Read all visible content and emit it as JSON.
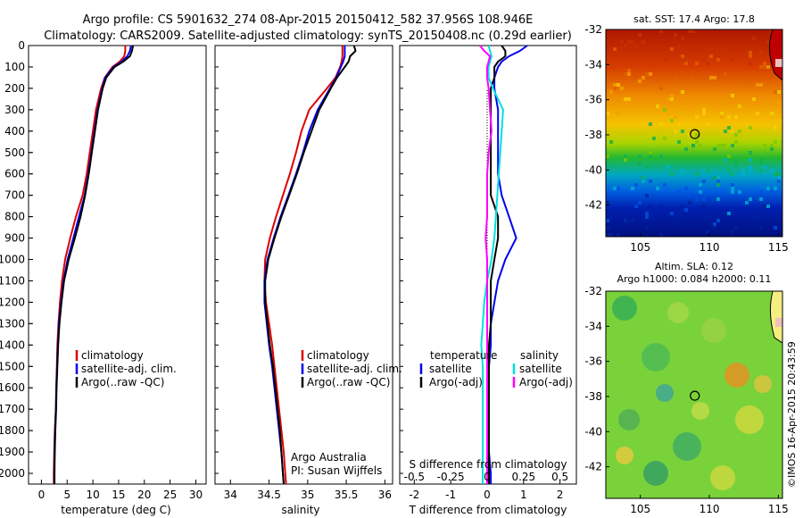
{
  "header": {
    "line1": "Argo profile: CS 5901632_274 08-Apr-2015 20150412_582 37.956S 108.946E",
    "line2": "Climatology: CARS2009. Satellite-adjusted climatology: synTS_20150408.nc (0.29d earlier)"
  },
  "chart_data": [
    {
      "type": "line",
      "name": "temperature panel",
      "xlabel": "temperature (deg C)",
      "ylabel": "",
      "xlim": [
        -2.5,
        32
      ],
      "ylim": [
        2050,
        0
      ],
      "xticks": [
        "0",
        "5",
        "10",
        "15",
        "20",
        "25",
        "30"
      ],
      "yticks": [
        "0",
        "100",
        "200",
        "300",
        "400",
        "500",
        "600",
        "700",
        "800",
        "900",
        "1000",
        "1100",
        "1200",
        "1300",
        "1400",
        "1500",
        "1600",
        "1700",
        "1800",
        "1900",
        "2000"
      ],
      "legend": [
        "climatology",
        "satellite-adj. clim.",
        "Argo(..raw -QC)"
      ],
      "legend_colors": [
        "#dd0000",
        "#0000ee",
        "#000000"
      ],
      "depth": [
        0,
        25,
        50,
        75,
        100,
        150,
        200,
        300,
        400,
        500,
        600,
        700,
        800,
        900,
        1000,
        1100,
        1200,
        1300,
        1400,
        1500,
        1600,
        1700,
        1800,
        1900,
        2000,
        2050
      ],
      "series": [
        {
          "name": "climatology",
          "color": "#dd0000",
          "values": [
            16.3,
            16.3,
            16.1,
            15.2,
            13.8,
            12.3,
            11.6,
            10.6,
            10.0,
            9.4,
            8.8,
            8.0,
            6.7,
            5.6,
            4.6,
            4.0,
            3.6,
            3.3,
            3.1,
            3.0,
            2.9,
            2.8,
            2.6,
            2.5,
            2.4,
            2.4
          ]
        },
        {
          "name": "satellite-adj. clim.",
          "color": "#0000ee",
          "values": [
            17.4,
            17.2,
            16.7,
            15.6,
            14.0,
            12.4,
            11.8,
            10.9,
            10.3,
            9.7,
            9.1,
            8.4,
            7.3,
            6.2,
            5.1,
            4.3,
            3.8,
            3.4,
            3.2,
            3.05,
            2.9,
            2.8,
            2.65,
            2.55,
            2.5,
            2.5
          ]
        },
        {
          "name": "Argo(..raw -QC)",
          "color": "#000000",
          "values": [
            17.8,
            17.6,
            17.2,
            15.9,
            14.2,
            12.6,
            11.9,
            11.0,
            10.4,
            9.8,
            9.2,
            8.5,
            7.6,
            6.5,
            5.3,
            4.4,
            3.9,
            3.5,
            3.25,
            3.1,
            2.95,
            2.85,
            2.7,
            2.6,
            2.55,
            2.55
          ]
        }
      ]
    },
    {
      "type": "line",
      "name": "salinity panel",
      "xlabel": "salinity",
      "xlim": [
        33.8,
        36.1
      ],
      "ylim": [
        2050,
        0
      ],
      "xticks": [
        "34",
        "34.5",
        "35",
        "35.5",
        "36"
      ],
      "legend": [
        "climatology",
        "satellite-adj. clim.",
        "Argo(..raw -QC)"
      ],
      "legend_colors": [
        "#dd0000",
        "#0000ee",
        "#000000"
      ],
      "annotation": [
        "Argo Australia",
        "PI: Susan Wijffels"
      ],
      "depth": [
        0,
        25,
        50,
        75,
        100,
        150,
        200,
        300,
        400,
        500,
        600,
        700,
        800,
        900,
        1000,
        1100,
        1200,
        1300,
        1400,
        1500,
        1600,
        1700,
        1800,
        1900,
        2000,
        2050
      ],
      "series": [
        {
          "name": "climatology",
          "color": "#dd0000",
          "values": [
            35.45,
            35.45,
            35.45,
            35.44,
            35.42,
            35.36,
            35.25,
            35.02,
            34.92,
            34.85,
            34.77,
            34.68,
            34.59,
            34.51,
            34.45,
            34.44,
            34.46,
            34.5,
            34.54,
            34.57,
            34.6,
            34.63,
            34.66,
            34.69,
            34.71,
            34.72
          ]
        },
        {
          "name": "satellite-adj. clim.",
          "color": "#0000ee",
          "values": [
            35.48,
            35.48,
            35.48,
            35.46,
            35.43,
            35.37,
            35.29,
            35.13,
            35.02,
            34.94,
            34.85,
            34.75,
            34.65,
            34.56,
            34.48,
            34.44,
            34.44,
            34.47,
            34.5,
            34.54,
            34.57,
            34.6,
            34.63,
            34.66,
            34.68,
            34.69
          ]
        },
        {
          "name": "Argo(..raw -QC)",
          "color": "#000000",
          "values": [
            35.6,
            35.62,
            35.55,
            35.53,
            35.48,
            35.38,
            35.3,
            35.15,
            35.05,
            34.95,
            34.86,
            34.76,
            34.66,
            34.57,
            34.49,
            34.45,
            34.45,
            34.48,
            34.51,
            34.55,
            34.58,
            34.61,
            34.64,
            34.66,
            34.68,
            34.69
          ]
        }
      ]
    },
    {
      "type": "line",
      "name": "difference panel",
      "xlabel": "T difference from climatology",
      "xlabel2": "S difference from climatology",
      "xlim": [
        -2.4,
        2.45
      ],
      "ylim": [
        2050,
        0
      ],
      "xticks": [
        "-2",
        "-1",
        "0",
        "1",
        "2"
      ],
      "xticks_top": [
        "-0.5",
        "-0.25",
        "0",
        "0.25",
        "0.5"
      ],
      "legend_headers": [
        "temperature",
        "salinity"
      ],
      "legend": [
        "satellite",
        "Argo(-adj)",
        "satellite",
        "Argo(-adj)"
      ],
      "legend_colors": [
        "#0000ee",
        "#000000",
        "#00e0e0",
        "#ff00ff"
      ],
      "depth": [
        0,
        25,
        50,
        75,
        100,
        150,
        200,
        300,
        400,
        500,
        600,
        700,
        800,
        900,
        1000,
        1100,
        1200,
        1300,
        1400,
        1500,
        1600,
        1700,
        1800,
        1900,
        2000,
        2050
      ],
      "series": [
        {
          "name": "T satellite",
          "color": "#0000ee",
          "values": [
            1.1,
            0.9,
            0.6,
            0.4,
            0.3,
            0.2,
            0.2,
            0.3,
            0.3,
            0.3,
            0.3,
            0.4,
            0.6,
            0.8,
            0.5,
            0.3,
            0.2,
            0.1,
            0.1,
            0.05,
            0.0,
            0.0,
            0.05,
            0.05,
            0.1,
            0.1
          ]
        },
        {
          "name": "T Argo(-adj)",
          "color": "#000000",
          "values": [
            0.4,
            0.5,
            0.5,
            0.3,
            0.2,
            0.2,
            0.1,
            0.1,
            0.1,
            0.1,
            0.1,
            0.1,
            0.3,
            0.3,
            0.2,
            0.1,
            0.1,
            0.1,
            0.05,
            0.05,
            0.05,
            0.05,
            0.05,
            0.05,
            0.05,
            0.05
          ]
        },
        {
          "name": "S satellite",
          "color": "#00e0e0",
          "values": [
            0.01,
            0.02,
            0.03,
            0.02,
            0.01,
            0.01,
            0.04,
            0.11,
            0.1,
            0.09,
            0.08,
            0.07,
            0.06,
            0.05,
            0.03,
            0.0,
            -0.02,
            -0.03,
            -0.04,
            -0.03,
            -0.03,
            -0.03,
            -0.03,
            -0.03,
            -0.03,
            -0.03
          ]
        },
        {
          "name": "S Argo(-adj)",
          "color": "#ff00ff",
          "values": [
            -0.05,
            -0.02,
            0.02,
            0.01,
            0.0,
            0.0,
            0.01,
            0.02,
            0.03,
            0.01,
            0.0,
            0.0,
            0.0,
            -0.01,
            0.0,
            0.0,
            0.0,
            0.0,
            0.0,
            0.0,
            0.0,
            0.0,
            0.0,
            0.0,
            0.0,
            0.0
          ]
        }
      ]
    },
    {
      "type": "heatmap",
      "name": "SST map",
      "title": "sat. SST: 17.4 Argo: 17.8",
      "xlim": [
        102.5,
        115.3
      ],
      "ylim": [
        -43.8,
        -32
      ],
      "xticks": [
        "105",
        "110",
        "115"
      ],
      "yticks": [
        "-32",
        "-34",
        "-36",
        "-38",
        "-40",
        "-42"
      ],
      "marker": {
        "lon": 108.946,
        "lat": -37.956
      }
    },
    {
      "type": "heatmap",
      "name": "SLA map",
      "title": "Altim. SLA: 0.12",
      "subtitle": "Argo h1000: 0.084 h2000: 0.11",
      "xlim": [
        102.5,
        115.3
      ],
      "ylim": [
        -43.8,
        -32
      ],
      "xticks": [
        "105",
        "110",
        "115"
      ],
      "yticks": [
        "-32",
        "-34",
        "-36",
        "-38",
        "-40",
        "-42"
      ],
      "marker": {
        "lon": 108.946,
        "lat": -37.956
      }
    }
  ],
  "footer": {
    "credit": "©IMOS 16-Apr-2015 20:43:59"
  }
}
